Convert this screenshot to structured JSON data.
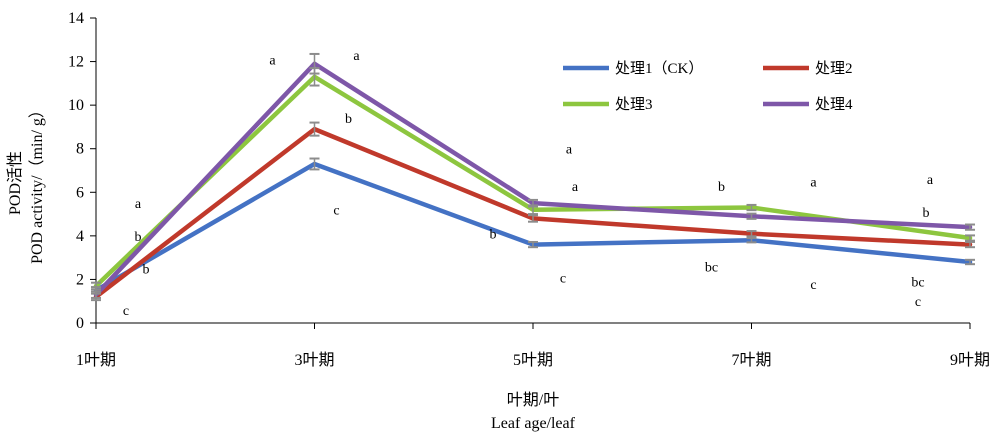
{
  "chart_data": {
    "type": "line",
    "categories": [
      "1叶期",
      "3叶期",
      "5叶期",
      "7叶期",
      "9叶期"
    ],
    "xlabel": "叶期/叶",
    "xlabel_en": "Leaf age/leaf",
    "ylabel": "POD活性",
    "ylabel_en": "POD activity/（min/ g）",
    "ylim": [
      0,
      14
    ],
    "yticks": [
      0,
      2,
      4,
      6,
      8,
      10,
      12,
      14
    ],
    "grid": false,
    "legend_position": "top-right",
    "series": [
      {
        "name": "处理1（CK）",
        "color": "#4472C4",
        "values": [
          1.5,
          7.3,
          3.6,
          3.8,
          2.8
        ],
        "errors": [
          0.15,
          0.25,
          0.12,
          0.1,
          0.1
        ]
      },
      {
        "name": "处理2",
        "color": "#C0392B",
        "values": [
          1.2,
          8.9,
          4.8,
          4.1,
          3.6
        ],
        "errors": [
          0.15,
          0.3,
          0.15,
          0.12,
          0.12
        ]
      },
      {
        "name": "处理3",
        "color": "#8DC63F",
        "values": [
          1.7,
          11.3,
          5.2,
          5.3,
          3.9
        ],
        "errors": [
          0.15,
          0.4,
          0.2,
          0.12,
          0.12
        ]
      },
      {
        "name": "处理4",
        "color": "#7E57A8",
        "values": [
          1.3,
          11.9,
          5.5,
          4.9,
          4.4
        ],
        "errors": [
          0.15,
          0.45,
          0.15,
          0.12,
          0.12
        ]
      }
    ],
    "annotations": [
      {
        "text": "a",
        "x": 0,
        "y": 5.5
      },
      {
        "text": "b",
        "x": 0,
        "y": 4.0
      },
      {
        "text": "b",
        "x": 0,
        "y": 2.5
      },
      {
        "text": "c",
        "x": 0,
        "y": 0.6
      },
      {
        "text": "a",
        "x": 1,
        "y": 12.1
      },
      {
        "text": "a",
        "x": 1,
        "y": 12.3
      },
      {
        "text": "b",
        "x": 1,
        "y": 9.4
      },
      {
        "text": "c",
        "x": 1,
        "y": 5.2
      },
      {
        "text": "a",
        "x": 2,
        "y": 8.0
      },
      {
        "text": "a",
        "x": 2,
        "y": 6.3
      },
      {
        "text": "b",
        "x": 2,
        "y": 4.1
      },
      {
        "text": "c",
        "x": 2,
        "y": 2.1
      },
      {
        "text": "b",
        "x": 3,
        "y": 6.3
      },
      {
        "text": "a",
        "x": 3,
        "y": 6.5
      },
      {
        "text": "bc",
        "x": 3,
        "y": 2.6
      },
      {
        "text": "c",
        "x": 3,
        "y": 1.8
      },
      {
        "text": "a",
        "x": 4,
        "y": 6.6
      },
      {
        "text": "b",
        "x": 4,
        "y": 5.1
      },
      {
        "text": "bc",
        "x": 4,
        "y": 1.9
      },
      {
        "text": "c",
        "x": 4,
        "y": 1.0
      }
    ]
  }
}
